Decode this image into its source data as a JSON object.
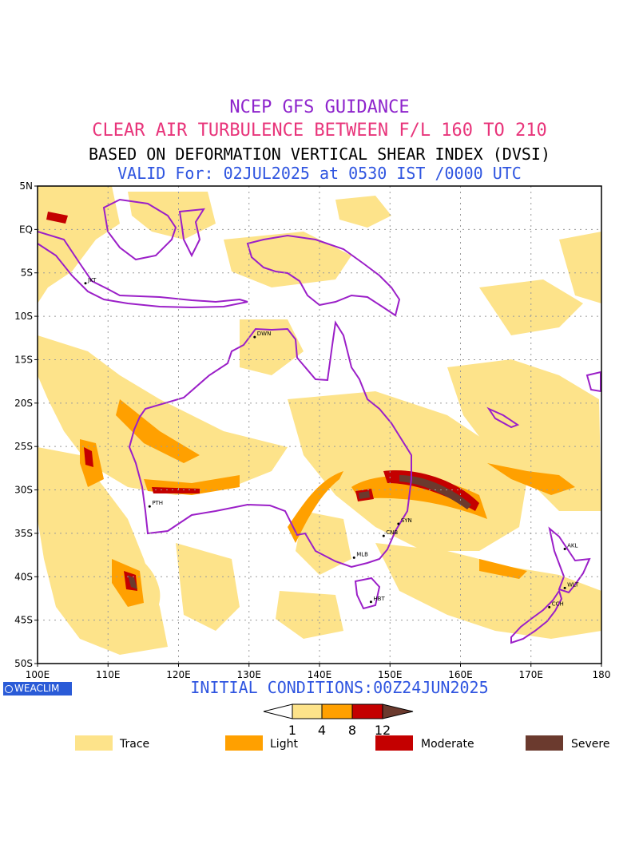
{
  "header": {
    "line1": "NCEP GFS GUIDANCE",
    "line2": "CLEAR AIR TURBULENCE BETWEEN F/L 160 TO 210",
    "line3": "BASED ON DEFORMATION VERTICAL SHEAR INDEX (DVSI)",
    "line4": "VALID For: 02JUL2025 at 0530 IST /0000 UTC"
  },
  "colors": {
    "line1": "#8e24cc",
    "line2": "#e8347a",
    "line3": "#000000",
    "line4": "#2f55e0",
    "coast": "#9b1fc8",
    "trace": "#fde38a",
    "light": "#ffa000",
    "moderate": "#c40000",
    "severe": "#6b3a2e",
    "grid": "#9a9a9a"
  },
  "map": {
    "lat_labels": [
      "5N",
      "EQ",
      "5S",
      "10S",
      "15S",
      "20S",
      "25S",
      "30S",
      "35S",
      "40S",
      "45S",
      "50S"
    ],
    "lon_labels": [
      "100E",
      "110E",
      "120E",
      "130E",
      "140E",
      "150E",
      "160E",
      "170E",
      "180"
    ],
    "lat_range": [
      5,
      -50
    ],
    "lon_range": [
      100,
      180
    ],
    "cities": [
      {
        "code": "JKT",
        "lon": 106.8,
        "lat": -6.2
      },
      {
        "code": "DWN",
        "lon": 130.8,
        "lat": -12.4
      },
      {
        "code": "PTH",
        "lon": 115.9,
        "lat": -31.9
      },
      {
        "code": "SYN",
        "lon": 151.2,
        "lat": -33.9
      },
      {
        "code": "CNB",
        "lon": 149.1,
        "lat": -35.3
      },
      {
        "code": "MLB",
        "lon": 144.9,
        "lat": -37.8
      },
      {
        "code": "HBT",
        "lon": 147.3,
        "lat": -42.9
      },
      {
        "code": "AKL",
        "lon": 174.8,
        "lat": -36.8
      },
      {
        "code": "WLT",
        "lon": 174.8,
        "lat": -41.3
      },
      {
        "code": "CCH",
        "lon": 172.6,
        "lat": -43.5
      }
    ]
  },
  "footer": {
    "badge": "WEACLIM",
    "initial": "INITIAL CONDITIONS:00Z24JUN2025",
    "scale_ticks": [
      "1",
      "4",
      "8",
      "12"
    ],
    "categories": [
      "Trace",
      "Light",
      "Moderate",
      "Severe"
    ]
  }
}
